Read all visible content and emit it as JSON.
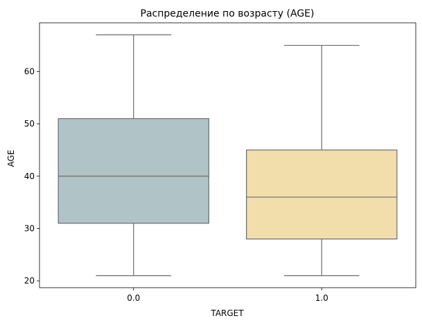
{
  "chart_data": {
    "type": "box",
    "title": "Распределение по возрасту (AGE)",
    "xlabel": "TARGET",
    "ylabel": "AGE",
    "ylim": [
      18.7,
      69.3
    ],
    "yticks": [
      20,
      30,
      40,
      50,
      60
    ],
    "grid": false,
    "categories": [
      "0.0",
      "1.0"
    ],
    "boxes": [
      {
        "category": "0.0",
        "min": 21,
        "q1": 31,
        "median": 40,
        "q3": 51,
        "max": 67,
        "color": "#b0c4c7"
      },
      {
        "category": "1.0",
        "min": 21,
        "q1": 28,
        "median": 36,
        "q3": 45,
        "max": 65,
        "color": "#f2deab"
      }
    ],
    "line_color": "#6b6b6b"
  }
}
